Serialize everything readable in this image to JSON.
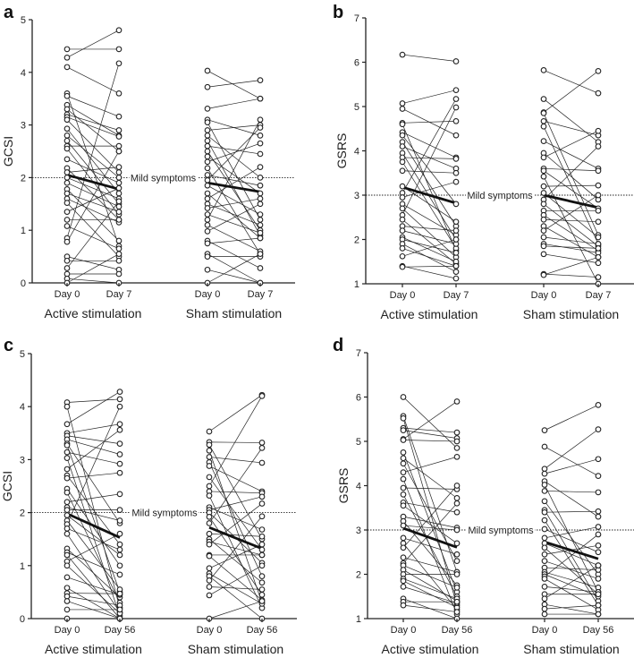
{
  "chart_data": [
    {
      "panel": "a",
      "type": "line",
      "ylabel": "GCSI",
      "ylim": [
        0,
        5
      ],
      "yticks": [
        0,
        1,
        2,
        3,
        4,
        5
      ],
      "threshold": {
        "value": 2,
        "label": "Mild symptoms"
      },
      "timepoints": [
        "Day 0",
        "Day 7"
      ],
      "groups": [
        {
          "name": "Active stimulation",
          "mean": [
            2.05,
            1.78
          ],
          "pairs": [
            [
              4.44,
              4.44
            ],
            [
              4.28,
              4.8
            ],
            [
              4.1,
              3.6
            ],
            [
              3.6,
              0.7
            ],
            [
              3.55,
              3.16
            ],
            [
              3.38,
              2.8
            ],
            [
              3.3,
              2.5
            ],
            [
              3.2,
              2.9
            ],
            [
              3.15,
              2.78
            ],
            [
              3.1,
              2.1
            ],
            [
              2.93,
              1.7
            ],
            [
              2.8,
              2.0
            ],
            [
              2.7,
              1.5
            ],
            [
              2.6,
              2.6
            ],
            [
              2.55,
              1.3
            ],
            [
              2.35,
              1.9
            ],
            [
              2.18,
              1.2
            ],
            [
              2.1,
              2.2
            ],
            [
              2.0,
              1.6
            ],
            [
              1.9,
              1.45
            ],
            [
              1.78,
              0.8
            ],
            [
              1.7,
              1.35
            ],
            [
              1.6,
              1.15
            ],
            [
              1.52,
              0.5
            ],
            [
              1.35,
              1.8
            ],
            [
              1.2,
              1.2
            ],
            [
              1.08,
              0.65
            ],
            [
              0.85,
              4.17
            ],
            [
              0.78,
              2.5
            ],
            [
              0.5,
              0.25
            ],
            [
              0.42,
              0.42
            ],
            [
              0.28,
              1.55
            ],
            [
              0.17,
              0.17
            ],
            [
              0.08,
              0.0
            ],
            [
              0.0,
              0.55
            ]
          ]
        },
        {
          "name": "Sham stimulation",
          "mean": [
            1.9,
            1.73
          ],
          "pairs": [
            [
              4.03,
              3.5
            ],
            [
              3.72,
              3.85
            ],
            [
              3.31,
              3.5
            ],
            [
              3.1,
              2.8
            ],
            [
              3.05,
              1.2
            ],
            [
              2.9,
              3.0
            ],
            [
              2.8,
              2.0
            ],
            [
              2.7,
              0.9
            ],
            [
              2.6,
              2.45
            ],
            [
              2.5,
              1.0
            ],
            [
              2.4,
              1.7
            ],
            [
              2.3,
              2.65
            ],
            [
              2.18,
              0.55
            ],
            [
              2.05,
              1.85
            ],
            [
              1.95,
              2.95
            ],
            [
              1.85,
              1.3
            ],
            [
              1.7,
              0.85
            ],
            [
              1.6,
              2.2
            ],
            [
              1.5,
              1.1
            ],
            [
              1.42,
              1.6
            ],
            [
              1.3,
              0.95
            ],
            [
              1.2,
              3.1
            ],
            [
              1.1,
              0.6
            ],
            [
              0.98,
              1.5
            ],
            [
              0.8,
              0.28
            ],
            [
              0.75,
              0.85
            ],
            [
              0.55,
              0.0
            ],
            [
              0.5,
              0.5
            ],
            [
              0.25,
              0.0
            ],
            [
              0.0,
              0.55
            ]
          ]
        }
      ]
    },
    {
      "panel": "b",
      "type": "line",
      "ylabel": "GSRS",
      "ylim": [
        1,
        7
      ],
      "yticks": [
        1,
        2,
        3,
        4,
        5,
        6,
        7
      ],
      "threshold": {
        "value": 3,
        "label": "Mild symptoms"
      },
      "timepoints": [
        "Day 0",
        "Day 7"
      ],
      "groups": [
        {
          "name": "Active stimulation",
          "mean": [
            3.18,
            2.82
          ],
          "pairs": [
            [
              6.17,
              6.02
            ],
            [
              5.07,
              5.37
            ],
            [
              4.95,
              4.35
            ],
            [
              4.63,
              4.67
            ],
            [
              4.6,
              1.75
            ],
            [
              4.42,
              3.85
            ],
            [
              4.35,
              2.8
            ],
            [
              4.2,
              2.3
            ],
            [
              4.1,
              3.6
            ],
            [
              3.95,
              2.0
            ],
            [
              3.85,
              3.82
            ],
            [
              3.75,
              1.8
            ],
            [
              3.55,
              3.5
            ],
            [
              3.2,
              2.4
            ],
            [
              3.05,
              5.17
            ],
            [
              2.95,
              3.3
            ],
            [
              2.8,
              2.1
            ],
            [
              2.7,
              1.6
            ],
            [
              2.55,
              4.98
            ],
            [
              2.45,
              1.45
            ],
            [
              2.3,
              2.2
            ],
            [
              2.2,
              1.9
            ],
            [
              2.05,
              1.5
            ],
            [
              2.0,
              1.7
            ],
            [
              1.9,
              1.27
            ],
            [
              1.8,
              1.4
            ],
            [
              1.62,
              2.0
            ],
            [
              1.4,
              1.12
            ],
            [
              1.38,
              1.4
            ]
          ]
        },
        {
          "name": "Sham stimulation",
          "mean": [
            3.0,
            2.72
          ],
          "pairs": [
            [
              5.82,
              5.3
            ],
            [
              5.17,
              4.2
            ],
            [
              4.87,
              5.8
            ],
            [
              4.85,
              2.1
            ],
            [
              4.67,
              4.35
            ],
            [
              4.55,
              1.9
            ],
            [
              4.22,
              3.6
            ],
            [
              3.95,
              2.9
            ],
            [
              3.85,
              4.45
            ],
            [
              3.6,
              3.55
            ],
            [
              3.55,
              2.7
            ],
            [
              3.42,
              1.0
            ],
            [
              3.2,
              3.22
            ],
            [
              3.05,
              2.05
            ],
            [
              2.9,
              4.1
            ],
            [
              2.8,
              1.85
            ],
            [
              2.65,
              2.65
            ],
            [
              2.55,
              1.75
            ],
            [
              2.45,
              2.4
            ],
            [
              2.3,
              1.6
            ],
            [
              2.2,
              3.0
            ],
            [
              2.05,
              1.9
            ],
            [
              1.9,
              1.7
            ],
            [
              1.85,
              1.8
            ],
            [
              1.67,
              1.47
            ],
            [
              1.22,
              1.15
            ],
            [
              1.2,
              1.6
            ]
          ]
        }
      ]
    },
    {
      "panel": "c",
      "type": "line",
      "ylabel": "GCSI",
      "ylim": [
        0,
        5
      ],
      "yticks": [
        0,
        1,
        2,
        3,
        4,
        5
      ],
      "threshold": {
        "value": 2,
        "label": "Mild symptoms"
      },
      "timepoints": [
        "Day 0",
        "Day 56"
      ],
      "groups": [
        {
          "name": "Active stimulation",
          "mean": [
            1.98,
            1.53
          ],
          "pairs": [
            [
              4.08,
              4.14
            ],
            [
              4.0,
              0.2
            ],
            [
              3.67,
              4.28
            ],
            [
              3.5,
              3.67
            ],
            [
              3.45,
              3.3
            ],
            [
              3.38,
              3.1
            ],
            [
              3.3,
              1.8
            ],
            [
              3.27,
              0.5
            ],
            [
              3.14,
              2.92
            ],
            [
              3.03,
              0.05
            ],
            [
              2.82,
              3.56
            ],
            [
              2.7,
              1.4
            ],
            [
              2.65,
              2.75
            ],
            [
              2.45,
              1.0
            ],
            [
              2.38,
              0.3
            ],
            [
              2.2,
              2.35
            ],
            [
              2.1,
              1.85
            ],
            [
              2.05,
              2.05
            ],
            [
              1.95,
              1.2
            ],
            [
              1.85,
              0.55
            ],
            [
              1.78,
              4.0
            ],
            [
              1.7,
              1.3
            ],
            [
              1.6,
              0.12
            ],
            [
              1.32,
              0.4
            ],
            [
              1.25,
              0.83
            ],
            [
              1.2,
              0.0
            ],
            [
              1.08,
              1.6
            ],
            [
              1.0,
              0.1
            ],
            [
              0.78,
              0.45
            ],
            [
              0.58,
              0.0
            ],
            [
              0.48,
              0.47
            ],
            [
              0.42,
              0.25
            ],
            [
              0.33,
              0.0
            ],
            [
              0.17,
              0.17
            ],
            [
              0.0,
              0.0
            ]
          ]
        },
        {
          "name": "Sham stimulation",
          "mean": [
            1.72,
            1.32
          ],
          "pairs": [
            [
              3.53,
              4.22
            ],
            [
              3.33,
              3.32
            ],
            [
              3.28,
              1.5
            ],
            [
              3.17,
              0.3
            ],
            [
              3.05,
              2.94
            ],
            [
              2.95,
              0.8
            ],
            [
              2.88,
              2.4
            ],
            [
              2.67,
              1.3
            ],
            [
              2.5,
              4.2
            ],
            [
              2.4,
              2.37
            ],
            [
              2.32,
              0.2
            ],
            [
              2.1,
              1.68
            ],
            [
              2.05,
              2.3
            ],
            [
              2.0,
              1.05
            ],
            [
              1.92,
              0.45
            ],
            [
              1.8,
              3.22
            ],
            [
              1.6,
              1.55
            ],
            [
              1.5,
              0.68
            ],
            [
              1.45,
              1.2
            ],
            [
              1.4,
              2.17
            ],
            [
              1.2,
              1.2
            ],
            [
              1.18,
              0.35
            ],
            [
              0.95,
              1.4
            ],
            [
              0.85,
              0.28
            ],
            [
              0.8,
              0.0
            ],
            [
              0.72,
              1.93
            ],
            [
              0.6,
              0.55
            ],
            [
              0.44,
              1.0
            ],
            [
              0.0,
              0.33
            ]
          ]
        }
      ]
    },
    {
      "panel": "d",
      "type": "line",
      "ylabel": "GSRS",
      "ylim": [
        1,
        7
      ],
      "yticks": [
        1,
        2,
        3,
        4,
        5,
        6,
        7
      ],
      "threshold": {
        "value": 3,
        "label": "Mild symptoms"
      },
      "timepoints": [
        "Day 0",
        "Day 56"
      ],
      "groups": [
        {
          "name": "Active stimulation",
          "mean": [
            3.04,
            2.61
          ],
          "pairs": [
            [
              6.0,
              4.85
            ],
            [
              5.57,
              2.05
            ],
            [
              5.52,
              1.3
            ],
            [
              5.3,
              5.2
            ],
            [
              5.25,
              5.07
            ],
            [
              5.05,
              5.9
            ],
            [
              5.03,
              5.0
            ],
            [
              4.75,
              1.6
            ],
            [
              4.62,
              3.72
            ],
            [
              4.5,
              2.3
            ],
            [
              4.3,
              4.65
            ],
            [
              4.15,
              1.1
            ],
            [
              3.95,
              3.92
            ],
            [
              3.8,
              1.5
            ],
            [
              3.62,
              3.4
            ],
            [
              3.55,
              2.7
            ],
            [
              3.3,
              3.05
            ],
            [
              3.2,
              1.75
            ],
            [
              3.1,
              3.0
            ],
            [
              2.82,
              2.45
            ],
            [
              2.7,
              1.2
            ],
            [
              2.6,
              4.0
            ],
            [
              2.38,
              2.05
            ],
            [
              2.25,
              3.6
            ],
            [
              2.2,
              1.7
            ],
            [
              2.1,
              1.4
            ],
            [
              2.0,
              2.0
            ],
            [
              1.9,
              1.45
            ],
            [
              1.85,
              1.25
            ],
            [
              1.72,
              1.35
            ],
            [
              1.45,
              1.0
            ],
            [
              1.38,
              1.38
            ],
            [
              1.3,
              1.15
            ]
          ]
        },
        {
          "name": "Sham stimulation",
          "mean": [
            2.73,
            2.35
          ],
          "pairs": [
            [
              5.25,
              5.82
            ],
            [
              4.88,
              4.22
            ],
            [
              4.38,
              5.27
            ],
            [
              4.27,
              4.6
            ],
            [
              4.1,
              3.3
            ],
            [
              4.02,
              1.6
            ],
            [
              3.88,
              3.85
            ],
            [
              3.65,
              2.0
            ],
            [
              3.45,
              1.4
            ],
            [
              3.4,
              3.42
            ],
            [
              3.22,
              1.3
            ],
            [
              3.02,
              2.5
            ],
            [
              2.82,
              3.07
            ],
            [
              2.7,
              2.2
            ],
            [
              2.6,
              1.55
            ],
            [
              2.45,
              2.65
            ],
            [
              2.3,
              1.9
            ],
            [
              2.15,
              2.1
            ],
            [
              2.05,
              1.7
            ],
            [
              2.0,
              1.5
            ],
            [
              1.95,
              2.9
            ],
            [
              1.9,
              1.2
            ],
            [
              1.72,
              1.6
            ],
            [
              1.55,
              1.55
            ],
            [
              1.45,
              2.2
            ],
            [
              1.32,
              1.1
            ],
            [
              1.22,
              1.3
            ],
            [
              1.1,
              1.1
            ]
          ]
        }
      ]
    }
  ]
}
